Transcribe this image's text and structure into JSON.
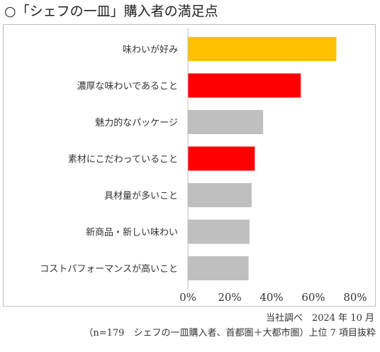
{
  "title": "○「シェフの一皿」購入者の満足点",
  "notes": {
    "source": "当社調べ　2024 年 10 月",
    "sample": "（n=179　シェフの一皿購入者、首都圏＋大都市圏）上位 7 項目抜粋"
  },
  "chart_data": {
    "type": "bar",
    "orientation": "horizontal",
    "categories": [
      "味わいが好み",
      "濃厚な味わいであること",
      "魅力的なパッケージ",
      "素材にこだわっていること",
      "具材量が多いこと",
      "新商品・新しい味わい",
      "コストパフォーマンスが高いこと"
    ],
    "values": [
      71,
      54,
      36,
      32,
      30.5,
      29.5,
      29
    ],
    "colors": [
      "#FFC000",
      "#FF0000",
      "#BFBFBF",
      "#FF0000",
      "#BFBFBF",
      "#BFBFBF",
      "#BFBFBF"
    ],
    "xlim": [
      0,
      80
    ],
    "xticks": [
      "0%",
      "20%",
      "40%",
      "60%",
      "80%"
    ],
    "xtick_values": [
      0,
      20,
      40,
      60,
      80
    ],
    "grid": false,
    "legend": "none"
  }
}
